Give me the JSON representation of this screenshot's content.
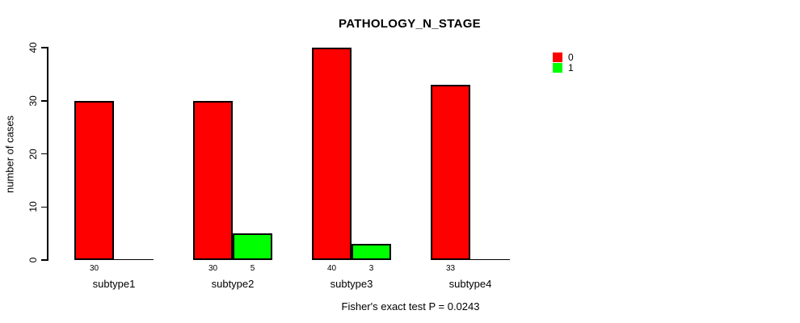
{
  "chart_data": {
    "type": "bar",
    "title": "PATHOLOGY_N_STAGE",
    "categories": [
      "subtype1",
      "subtype2",
      "subtype3",
      "subtype4"
    ],
    "series": [
      {
        "name": "0",
        "color": "#FF0000",
        "values": [
          30,
          30,
          40,
          33
        ]
      },
      {
        "name": "1",
        "color": "#00FF00",
        "values": [
          0,
          5,
          3,
          0
        ]
      }
    ],
    "xlabel": "",
    "ylabel": "number of cases",
    "ylim": [
      0,
      40
    ],
    "yticks": [
      0,
      10,
      20,
      30,
      40
    ],
    "grid": false,
    "legend_position": "top-right",
    "bar_value_labels_shown": true,
    "annotation": "Fisher's exact test P = 0.0243"
  }
}
